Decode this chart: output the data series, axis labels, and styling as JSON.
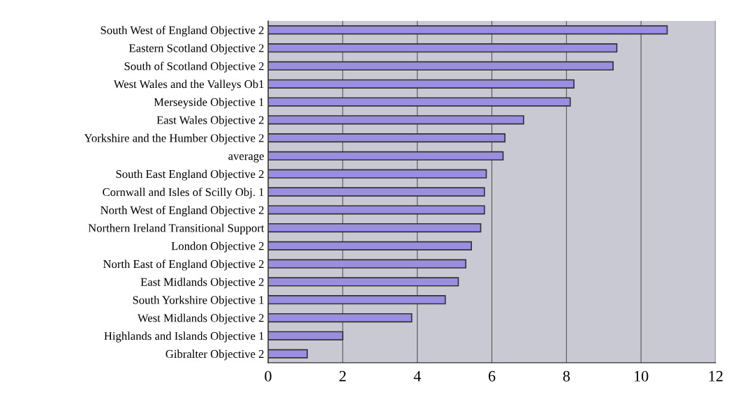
{
  "chart_data": {
    "type": "bar",
    "orientation": "horizontal",
    "categories": [
      "South West of England Objective 2",
      "Eastern Scotland Objective 2",
      "South of Scotland Objective 2",
      "West Wales and the Valleys Ob1",
      "Merseyside Objective 1",
      "East Wales Objective 2",
      "Yorkshire and the Humber Objective 2",
      "average",
      "South East England Objective 2",
      "Cornwall and Isles of Scilly Obj. 1",
      "North West of England Objective 2",
      "Northern Ireland Transitional Support",
      "London Objective 2",
      "North East of England Objective 2",
      "East Midlands Objective 2",
      "South Yorkshire Objective 1",
      "West Midlands Objective 2",
      "Highlands and Islands Objective 1",
      "Gibralter Objective 2"
    ],
    "values": [
      10.7,
      9.35,
      9.25,
      8.2,
      8.1,
      6.85,
      6.35,
      6.3,
      5.85,
      5.8,
      5.8,
      5.7,
      5.45,
      5.3,
      5.1,
      4.75,
      3.85,
      2.0,
      1.05
    ],
    "color": "#9b8ee0",
    "xlim": [
      0,
      12
    ],
    "xticks": [
      0,
      2,
      4,
      6,
      8,
      10,
      12
    ],
    "grid": "x",
    "legend": false
  }
}
